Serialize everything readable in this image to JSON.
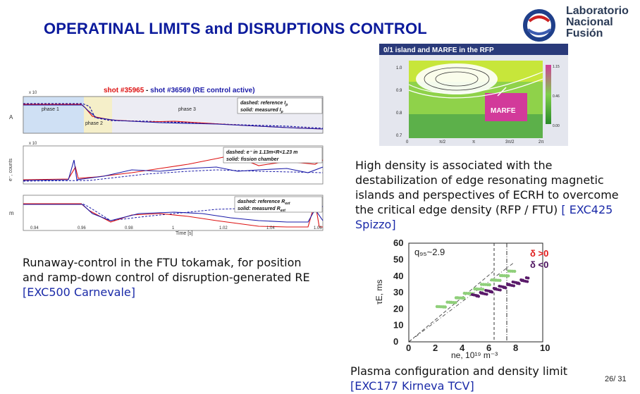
{
  "title": "OPERATINAL LIMITS and DISRUPTIONS CONTROL",
  "logo": {
    "line1": "Laboratorio",
    "line2": "Nacional",
    "line3": "Fusión"
  },
  "fig_left": {
    "header_a": "shot #35965",
    "header_sep": " - ",
    "header_b": "shot #36569 (RE control active)",
    "panel1": {
      "ylabel": "A",
      "exp": "x 10",
      "legend1": "dashed: reference I",
      "legend1_sub": "p",
      "legend2": "solid: measured I",
      "legend2_sub": "p",
      "phase1": "phase 1",
      "phase2": "phase 2",
      "phase3": "phase 3"
    },
    "panel2": {
      "ylabel": "e⁻, counts",
      "exp": "x 10",
      "legend1": "dashed: e⁻ in 1.13m<R<1.23 m",
      "legend2": "solid: fission chamber"
    },
    "panel3": {
      "ylabel": "m",
      "legend1": "dashed: reference R",
      "legend1_sub": "ext",
      "legend2": "solid: measured R",
      "legend2_sub": "ext"
    },
    "xticks": [
      "0.94",
      "0.96",
      "0.98",
      "1",
      "1.02",
      "1.04",
      "1.06"
    ],
    "xlabel": "Time [s]"
  },
  "fig_rfp": {
    "header": "0/1 island and MARFE in the RFP",
    "label": "MARFE",
    "xticks": [
      "0",
      "π/2",
      "π",
      "3π/2",
      "2π"
    ],
    "yticks": [
      "1.0",
      "0.9",
      "0.8",
      "0.7"
    ],
    "cbar": [
      "1.15",
      "0.46",
      "0.00"
    ]
  },
  "fig_tau": {
    "annotation": "q₉₅~2.9",
    "legend_pos": "δ >0",
    "legend_neg": "δ <0",
    "ylabel": "τE, ms",
    "xlabel": "ne, 10¹⁹ m⁻³",
    "xticks": [
      "0",
      "2",
      "4",
      "6",
      "8",
      "10"
    ],
    "yticks": [
      "0",
      "10",
      "20",
      "30",
      "40",
      "50",
      "60"
    ]
  },
  "captions": {
    "right_text": "High density is associated with the destabilization of edge resonating magnetic islands and perspectives of ECRH to overcome the critical edge density (RFP / FTU) ",
    "right_ref": "[ EXC425 Spizzo]",
    "left_text": "Runaway-control in the FTU tokamak, for position and ramp-down control of disruption-generated RE ",
    "left_ref": "[EXC500 Carnevale]",
    "bottom_text": "Plasma configuration and density limit ",
    "bottom_ref": "[EXC177 Kirneva TCV]"
  },
  "page_number": "26/ 31",
  "colors": {
    "title": "#0b1a9c",
    "ref": "#1a2aa8",
    "delta_pos": "#e01a1a",
    "delta_neg": "#4a0f5c"
  }
}
